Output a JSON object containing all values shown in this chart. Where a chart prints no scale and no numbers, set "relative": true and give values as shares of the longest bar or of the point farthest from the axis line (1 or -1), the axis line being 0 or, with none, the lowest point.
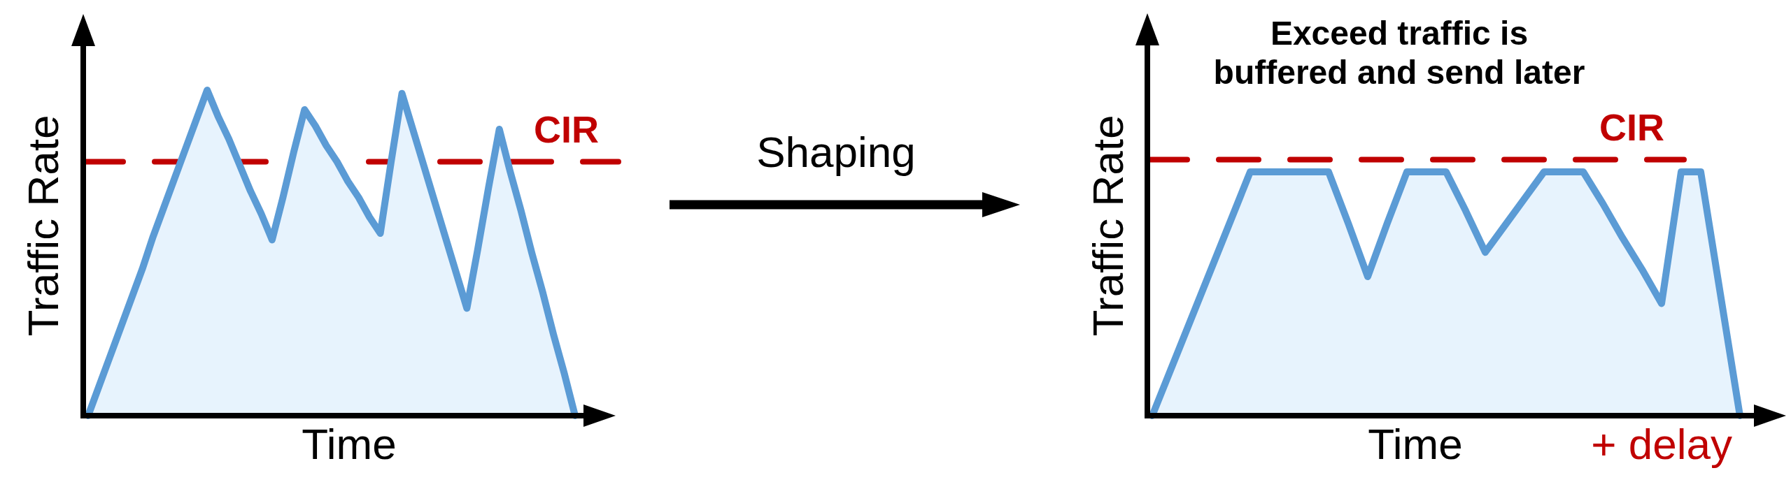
{
  "chart_data": [
    {
      "type": "area",
      "ylabel": "Traffic Rate",
      "xlabel": "Time",
      "relative": true,
      "categories": [
        null,
        null,
        null,
        null,
        null,
        null,
        null,
        null,
        null,
        null,
        null,
        null,
        null,
        null,
        null,
        null,
        null,
        null,
        null,
        null,
        null,
        null,
        null,
        null,
        null,
        null,
        null,
        null,
        null,
        null,
        null,
        null,
        null,
        null,
        null,
        null,
        null,
        null,
        null,
        null,
        null,
        null,
        null,
        null,
        null,
        null
      ],
      "series": [
        {
          "color": "#5b9bd5",
          "values": [
            0,
            0.09,
            0.18,
            0.27,
            0.36,
            0.45,
            0.55,
            0.64,
            0.73,
            0.82,
            0.91,
            1,
            0.92,
            0.85,
            0.77,
            0.69,
            0.62,
            0.54,
            0.67,
            0.81,
            0.94,
            0.89,
            0.83,
            0.78,
            0.72,
            0.67,
            0.61,
            0.56,
            0.78,
            0.99,
            0.88,
            0.77,
            0.66,
            0.55,
            0.44,
            0.33,
            0.51,
            0.7,
            0.88,
            0.75,
            0.63,
            0.5,
            0.38,
            0.25,
            0.13,
            0
          ]
        }
      ],
      "ref_lines": [
        {
          "axis": "y",
          "value": 0.78,
          "label": "CIR",
          "color": "#c00000",
          "line_style": "dashed"
        }
      ]
    },
    {
      "type": "other",
      "annotations": [
        "Shaping"
      ]
    },
    {
      "type": "area",
      "title": "Exceed traffic is\nbuffered and send later",
      "ylabel": "Traffic Rate",
      "xlabel": "Time",
      "relative": true,
      "categories": [
        null,
        null,
        null,
        null,
        null,
        null,
        null,
        null,
        null,
        null,
        null,
        null,
        null,
        null,
        null,
        null,
        null,
        null,
        null,
        null,
        null,
        null,
        null,
        null,
        null,
        null,
        null,
        null,
        null,
        null,
        null
      ],
      "series": [
        {
          "color": "#5b9bd5",
          "values": [
            0,
            0.2,
            0.4,
            0.6,
            0.8,
            1,
            1,
            1,
            1,
            1,
            0.79,
            0.57,
            0.79,
            1,
            1,
            1,
            0.84,
            0.67,
            0.78,
            0.89,
            1,
            1,
            1,
            0.87,
            0.73,
            0.6,
            0.46,
            1,
            1,
            0.5,
            0
          ]
        }
      ],
      "ref_lines": [
        {
          "axis": "y",
          "value": 1.05,
          "label": "CIR",
          "color": "#c00000",
          "line_style": "dashed"
        }
      ],
      "annotations": [
        "+ delay"
      ]
    }
  ]
}
